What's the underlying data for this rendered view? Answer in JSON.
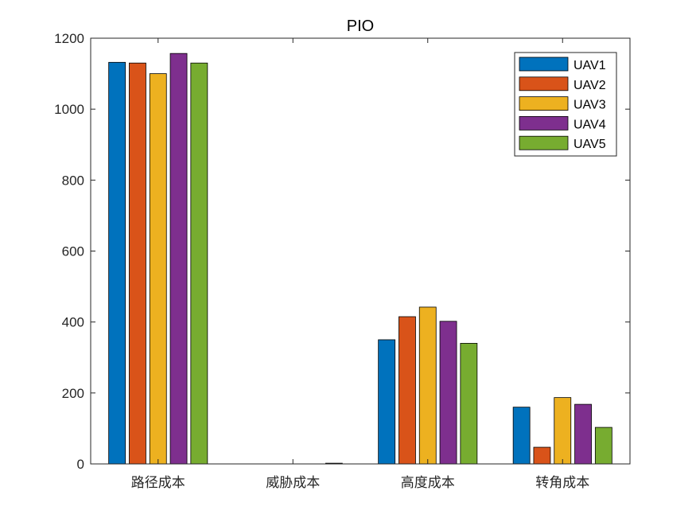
{
  "chart_data": {
    "type": "bar",
    "title": "PIO",
    "xlabel": "",
    "ylabel": "",
    "ylim": [
      0,
      1200
    ],
    "yticks": [
      0,
      200,
      400,
      600,
      800,
      1000,
      1200
    ],
    "categories": [
      "路径成本",
      "威胁成本",
      "高度成本",
      "转角成本"
    ],
    "series": [
      {
        "name": "UAV1",
        "color": "#0072BD",
        "values": [
          1132,
          0,
          350,
          160
        ]
      },
      {
        "name": "UAV2",
        "color": "#D95319",
        "values": [
          1130,
          0,
          415,
          47
        ]
      },
      {
        "name": "UAV3",
        "color": "#EDB120",
        "values": [
          1100,
          0,
          442,
          187
        ]
      },
      {
        "name": "UAV4",
        "color": "#7E2F8E",
        "values": [
          1157,
          0,
          402,
          168
        ]
      },
      {
        "name": "UAV5",
        "color": "#77AC30",
        "values": [
          1130,
          2,
          340,
          103
        ]
      }
    ],
    "legend_position": "top-right",
    "grid": false
  }
}
